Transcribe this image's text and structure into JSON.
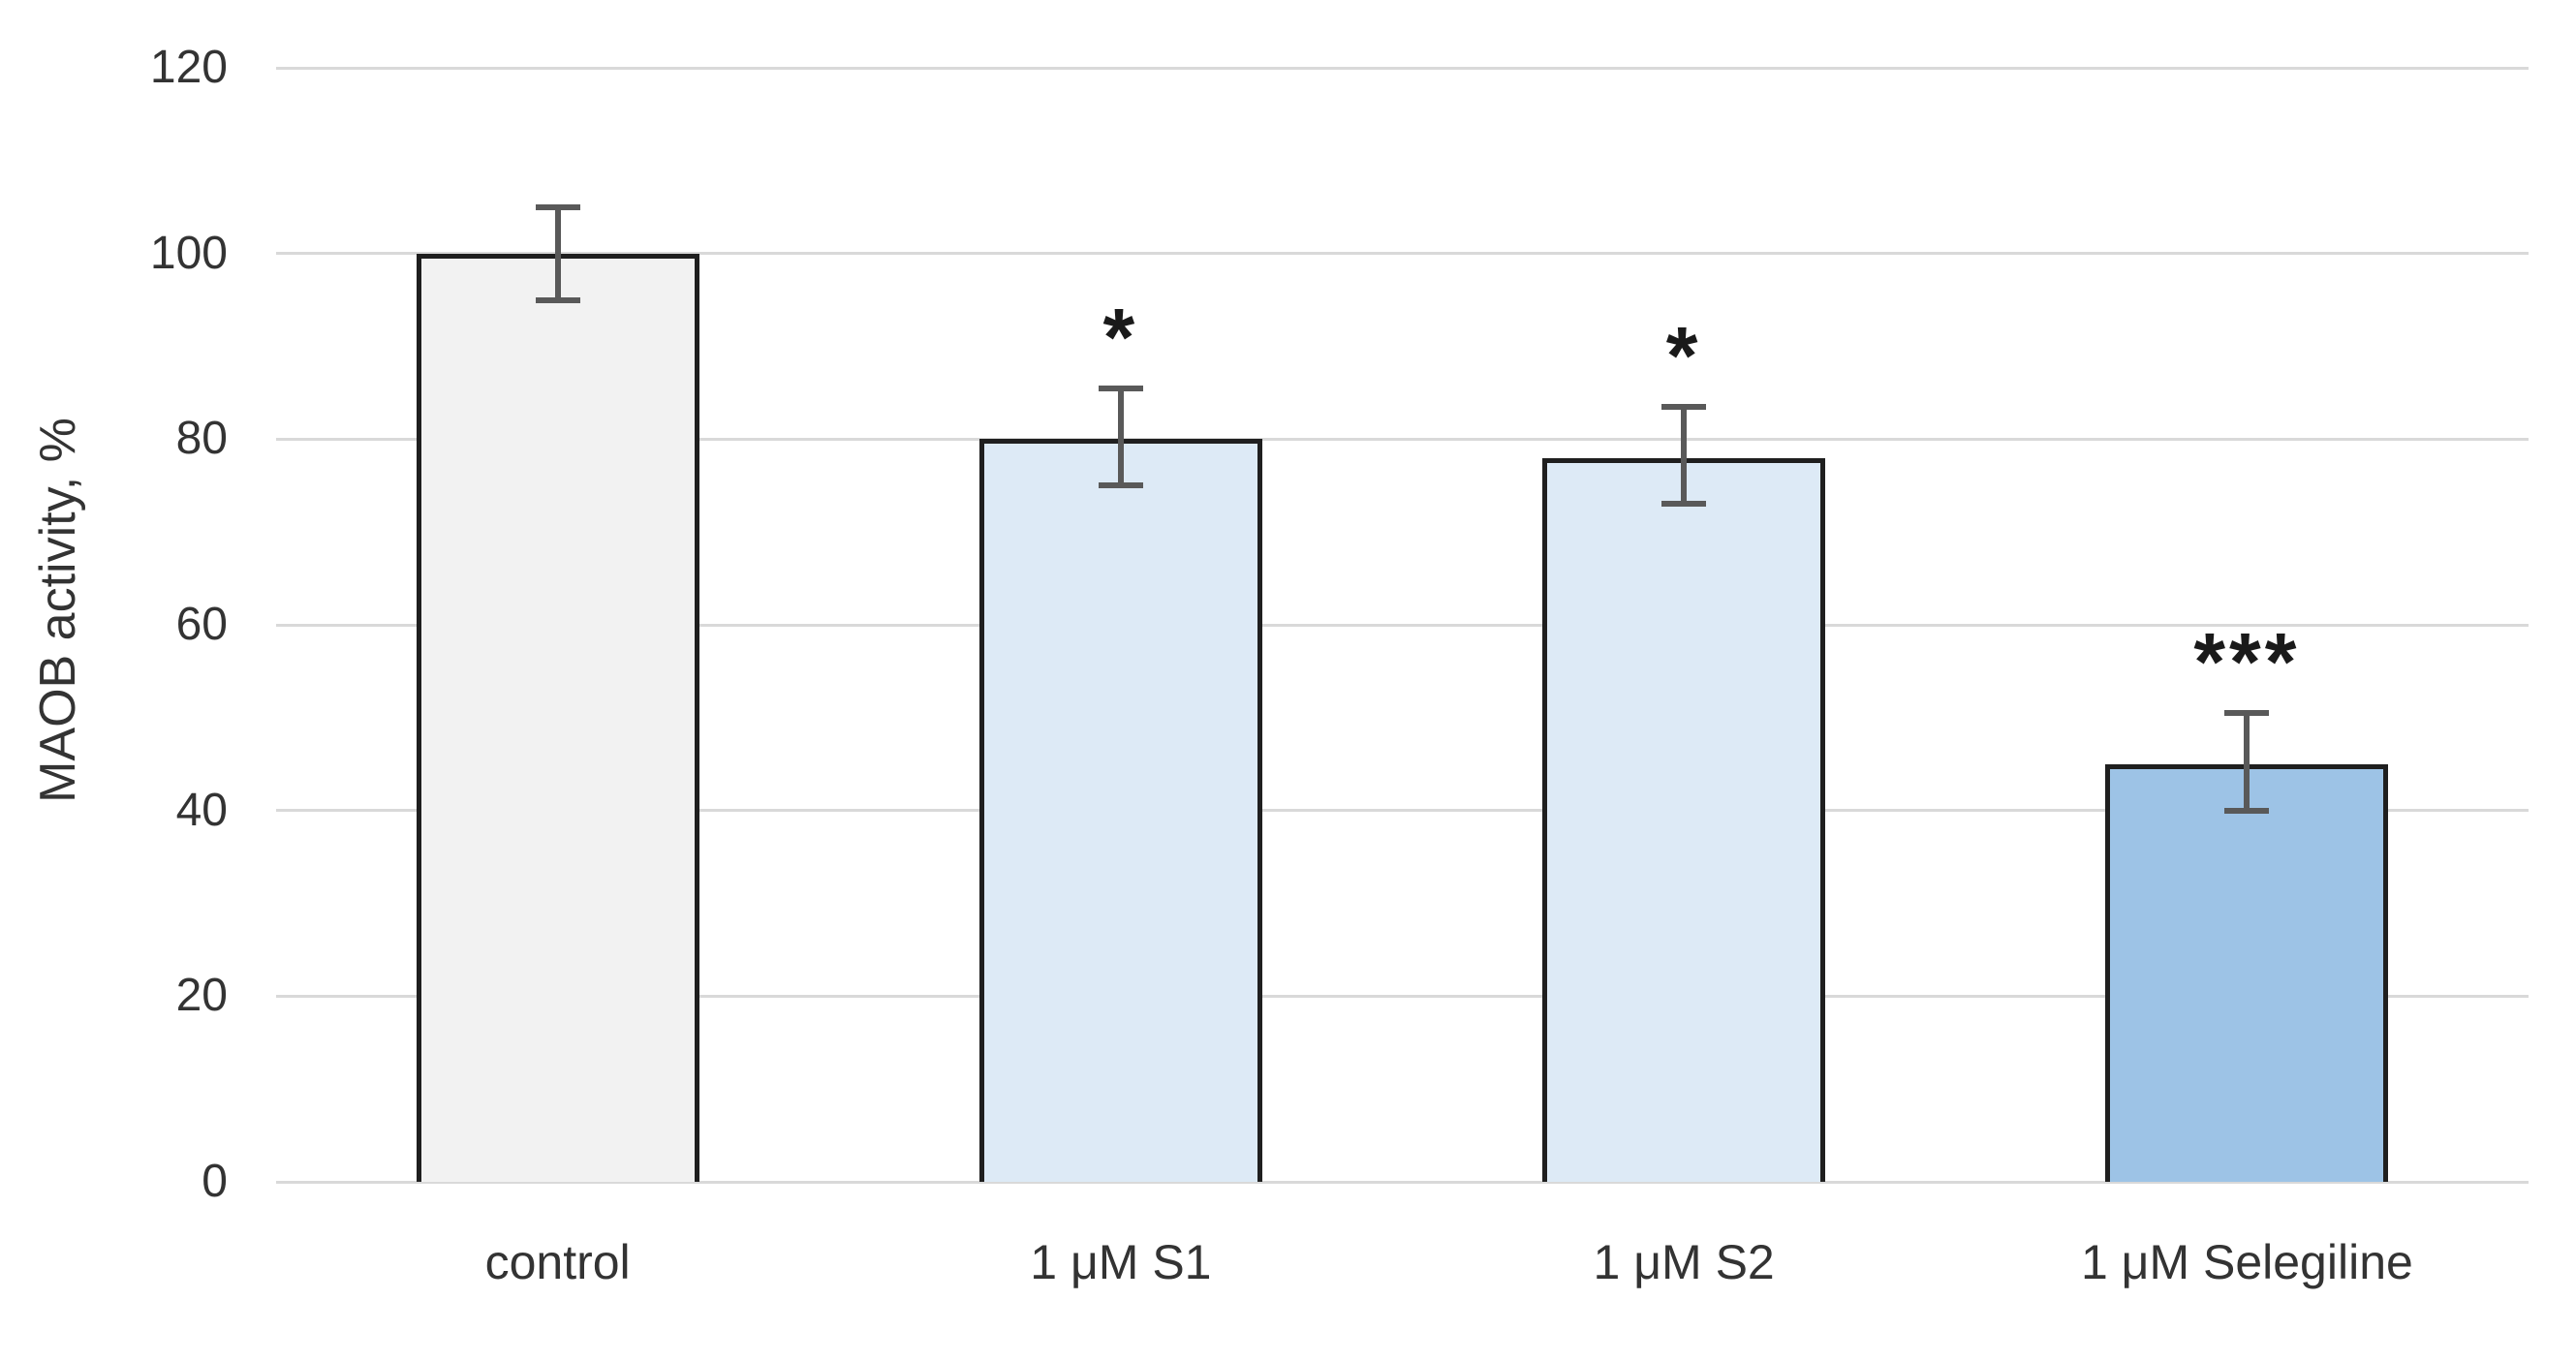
{
  "chart_data": {
    "type": "bar",
    "title": "",
    "xlabel": "",
    "ylabel": "MAOB activity, %",
    "ylim": [
      0,
      120
    ],
    "yticks": [
      0,
      20,
      40,
      60,
      80,
      100,
      120
    ],
    "grid": true,
    "legend": "none",
    "categories": [
      "control",
      "1 μM S1",
      "1 μM S2",
      "1 μM Selegiline"
    ],
    "values": [
      100,
      80,
      78,
      45
    ],
    "error_low": [
      95,
      75,
      73,
      40
    ],
    "error_high": [
      105,
      85.5,
      83.5,
      50.5
    ],
    "significance": [
      "",
      "*",
      "*",
      "***"
    ],
    "bar_colors": [
      "#F2F2F2",
      "#DDEAF6",
      "#DDEAF6",
      "#9DC3E6"
    ],
    "bar_border_color": "#1F1F1F",
    "error_bar_color": "#595959",
    "gridline_color": "#D9D9D9",
    "text_color": "#333333"
  }
}
